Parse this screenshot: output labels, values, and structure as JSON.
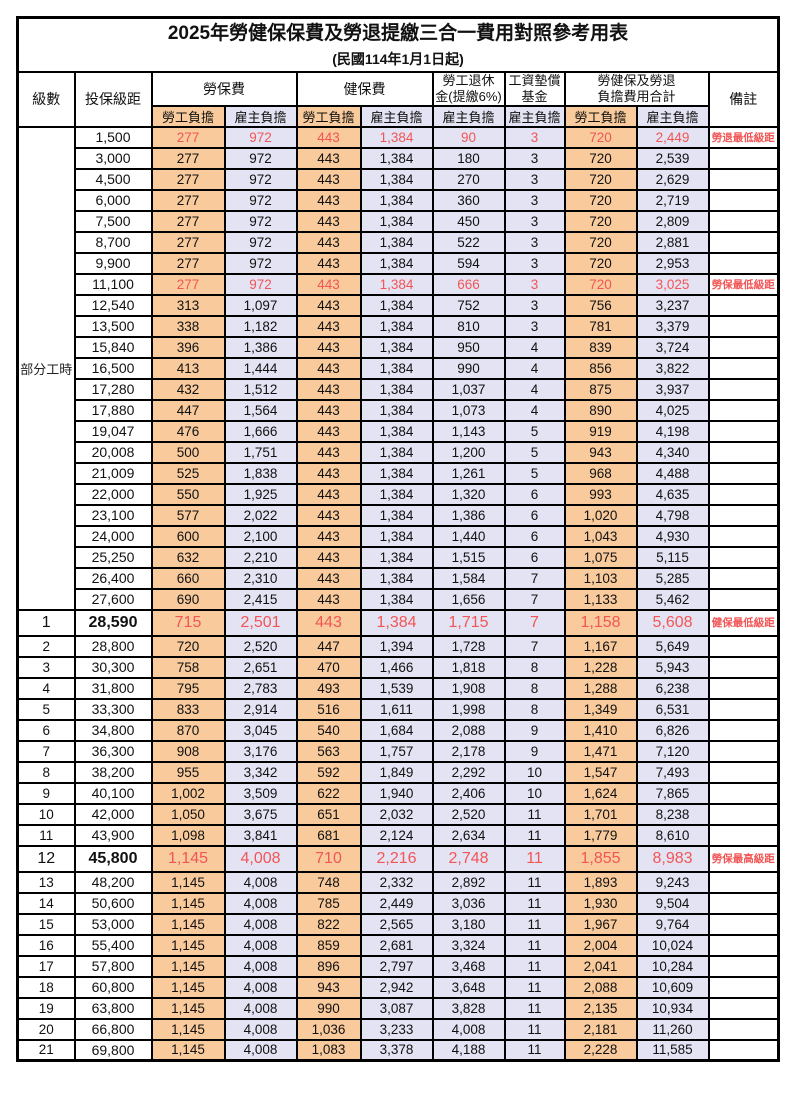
{
  "title": "2025年勞健保保費及勞退提繳三合一費用對照參考用表",
  "subtitle": "(民國114年1月1日起)",
  "colors": {
    "worker_bg": "#F8CA9C",
    "employer_bg": "#E4E3F3",
    "highlight_red": "#F25555",
    "border": "#000000"
  },
  "table": {
    "header": {
      "level": "級數",
      "bracket": "投保級距",
      "labor_ins": "勞保費",
      "health_ins": "健保費",
      "pension_line1": "勞工退休",
      "pension_line2": "金(提繳6%)",
      "fund_line1": "工資墊償",
      "fund_line2": "基金",
      "total_line1": "勞健保及勞退",
      "total_line2": "負擔費用合計",
      "remark": "備註",
      "worker": "勞工負擔",
      "employer": "雇主負擔"
    },
    "part_time_label": "部分工時",
    "part_time_rowspan": 23,
    "rows": [
      {
        "level": "",
        "bracket": "1,500",
        "cells": [
          "277",
          "972",
          "443",
          "1,384",
          "90",
          "3",
          "720",
          "2,449"
        ],
        "remark": "勞退最低級距",
        "red": true
      },
      {
        "level": "",
        "bracket": "3,000",
        "cells": [
          "277",
          "972",
          "443",
          "1,384",
          "180",
          "3",
          "720",
          "2,539"
        ],
        "remark": ""
      },
      {
        "level": "",
        "bracket": "4,500",
        "cells": [
          "277",
          "972",
          "443",
          "1,384",
          "270",
          "3",
          "720",
          "2,629"
        ],
        "remark": ""
      },
      {
        "level": "",
        "bracket": "6,000",
        "cells": [
          "277",
          "972",
          "443",
          "1,384",
          "360",
          "3",
          "720",
          "2,719"
        ],
        "remark": ""
      },
      {
        "level": "",
        "bracket": "7,500",
        "cells": [
          "277",
          "972",
          "443",
          "1,384",
          "450",
          "3",
          "720",
          "2,809"
        ],
        "remark": ""
      },
      {
        "level": "",
        "bracket": "8,700",
        "cells": [
          "277",
          "972",
          "443",
          "1,384",
          "522",
          "3",
          "720",
          "2,881"
        ],
        "remark": ""
      },
      {
        "level": "",
        "bracket": "9,900",
        "cells": [
          "277",
          "972",
          "443",
          "1,384",
          "594",
          "3",
          "720",
          "2,953"
        ],
        "remark": ""
      },
      {
        "level": "",
        "bracket": "11,100",
        "cells": [
          "277",
          "972",
          "443",
          "1,384",
          "666",
          "3",
          "720",
          "3,025"
        ],
        "remark": "勞保最低級距",
        "red": true
      },
      {
        "level": "",
        "bracket": "12,540",
        "cells": [
          "313",
          "1,097",
          "443",
          "1,384",
          "752",
          "3",
          "756",
          "3,237"
        ],
        "remark": ""
      },
      {
        "level": "",
        "bracket": "13,500",
        "cells": [
          "338",
          "1,182",
          "443",
          "1,384",
          "810",
          "3",
          "781",
          "3,379"
        ],
        "remark": ""
      },
      {
        "level": "",
        "bracket": "15,840",
        "cells": [
          "396",
          "1,386",
          "443",
          "1,384",
          "950",
          "4",
          "839",
          "3,724"
        ],
        "remark": ""
      },
      {
        "level": "",
        "bracket": "16,500",
        "cells": [
          "413",
          "1,444",
          "443",
          "1,384",
          "990",
          "4",
          "856",
          "3,822"
        ],
        "remark": ""
      },
      {
        "level": "",
        "bracket": "17,280",
        "cells": [
          "432",
          "1,512",
          "443",
          "1,384",
          "1,037",
          "4",
          "875",
          "3,937"
        ],
        "remark": ""
      },
      {
        "level": "",
        "bracket": "17,880",
        "cells": [
          "447",
          "1,564",
          "443",
          "1,384",
          "1,073",
          "4",
          "890",
          "4,025"
        ],
        "remark": ""
      },
      {
        "level": "",
        "bracket": "19,047",
        "cells": [
          "476",
          "1,666",
          "443",
          "1,384",
          "1,143",
          "5",
          "919",
          "4,198"
        ],
        "remark": ""
      },
      {
        "level": "",
        "bracket": "20,008",
        "cells": [
          "500",
          "1,751",
          "443",
          "1,384",
          "1,200",
          "5",
          "943",
          "4,340"
        ],
        "remark": ""
      },
      {
        "level": "",
        "bracket": "21,009",
        "cells": [
          "525",
          "1,838",
          "443",
          "1,384",
          "1,261",
          "5",
          "968",
          "4,488"
        ],
        "remark": ""
      },
      {
        "level": "",
        "bracket": "22,000",
        "cells": [
          "550",
          "1,925",
          "443",
          "1,384",
          "1,320",
          "6",
          "993",
          "4,635"
        ],
        "remark": ""
      },
      {
        "level": "",
        "bracket": "23,100",
        "cells": [
          "577",
          "2,022",
          "443",
          "1,384",
          "1,386",
          "6",
          "1,020",
          "4,798"
        ],
        "remark": ""
      },
      {
        "level": "",
        "bracket": "24,000",
        "cells": [
          "600",
          "2,100",
          "443",
          "1,384",
          "1,440",
          "6",
          "1,043",
          "4,930"
        ],
        "remark": ""
      },
      {
        "level": "",
        "bracket": "25,250",
        "cells": [
          "632",
          "2,210",
          "443",
          "1,384",
          "1,515",
          "6",
          "1,075",
          "5,115"
        ],
        "remark": ""
      },
      {
        "level": "",
        "bracket": "26,400",
        "cells": [
          "660",
          "2,310",
          "443",
          "1,384",
          "1,584",
          "7",
          "1,103",
          "5,285"
        ],
        "remark": ""
      },
      {
        "level": "",
        "bracket": "27,600",
        "cells": [
          "690",
          "2,415",
          "443",
          "1,384",
          "1,656",
          "7",
          "1,133",
          "5,462"
        ],
        "remark": ""
      },
      {
        "level": "1",
        "bracket": "28,590",
        "cells": [
          "715",
          "2,501",
          "443",
          "1,384",
          "1,715",
          "7",
          "1,158",
          "5,608"
        ],
        "remark": "健保最低級距",
        "red": true,
        "big": true
      },
      {
        "level": "2",
        "bracket": "28,800",
        "cells": [
          "720",
          "2,520",
          "447",
          "1,394",
          "1,728",
          "7",
          "1,167",
          "5,649"
        ],
        "remark": ""
      },
      {
        "level": "3",
        "bracket": "30,300",
        "cells": [
          "758",
          "2,651",
          "470",
          "1,466",
          "1,818",
          "8",
          "1,228",
          "5,943"
        ],
        "remark": ""
      },
      {
        "level": "4",
        "bracket": "31,800",
        "cells": [
          "795",
          "2,783",
          "493",
          "1,539",
          "1,908",
          "8",
          "1,288",
          "6,238"
        ],
        "remark": ""
      },
      {
        "level": "5",
        "bracket": "33,300",
        "cells": [
          "833",
          "2,914",
          "516",
          "1,611",
          "1,998",
          "8",
          "1,349",
          "6,531"
        ],
        "remark": ""
      },
      {
        "level": "6",
        "bracket": "34,800",
        "cells": [
          "870",
          "3,045",
          "540",
          "1,684",
          "2,088",
          "9",
          "1,410",
          "6,826"
        ],
        "remark": ""
      },
      {
        "level": "7",
        "bracket": "36,300",
        "cells": [
          "908",
          "3,176",
          "563",
          "1,757",
          "2,178",
          "9",
          "1,471",
          "7,120"
        ],
        "remark": ""
      },
      {
        "level": "8",
        "bracket": "38,200",
        "cells": [
          "955",
          "3,342",
          "592",
          "1,849",
          "2,292",
          "10",
          "1,547",
          "7,493"
        ],
        "remark": ""
      },
      {
        "level": "9",
        "bracket": "40,100",
        "cells": [
          "1,002",
          "3,509",
          "622",
          "1,940",
          "2,406",
          "10",
          "1,624",
          "7,865"
        ],
        "remark": ""
      },
      {
        "level": "10",
        "bracket": "42,000",
        "cells": [
          "1,050",
          "3,675",
          "651",
          "2,032",
          "2,520",
          "11",
          "1,701",
          "8,238"
        ],
        "remark": ""
      },
      {
        "level": "11",
        "bracket": "43,900",
        "cells": [
          "1,098",
          "3,841",
          "681",
          "2,124",
          "2,634",
          "11",
          "1,779",
          "8,610"
        ],
        "remark": ""
      },
      {
        "level": "12",
        "bracket": "45,800",
        "cells": [
          "1,145",
          "4,008",
          "710",
          "2,216",
          "2,748",
          "11",
          "1,855",
          "8,983"
        ],
        "remark": "勞保最高級距",
        "red": true,
        "big": true
      },
      {
        "level": "13",
        "bracket": "48,200",
        "cells": [
          "1,145",
          "4,008",
          "748",
          "2,332",
          "2,892",
          "11",
          "1,893",
          "9,243"
        ],
        "remark": ""
      },
      {
        "level": "14",
        "bracket": "50,600",
        "cells": [
          "1,145",
          "4,008",
          "785",
          "2,449",
          "3,036",
          "11",
          "1,930",
          "9,504"
        ],
        "remark": ""
      },
      {
        "level": "15",
        "bracket": "53,000",
        "cells": [
          "1,145",
          "4,008",
          "822",
          "2,565",
          "3,180",
          "11",
          "1,967",
          "9,764"
        ],
        "remark": ""
      },
      {
        "level": "16",
        "bracket": "55,400",
        "cells": [
          "1,145",
          "4,008",
          "859",
          "2,681",
          "3,324",
          "11",
          "2,004",
          "10,024"
        ],
        "remark": ""
      },
      {
        "level": "17",
        "bracket": "57,800",
        "cells": [
          "1,145",
          "4,008",
          "896",
          "2,797",
          "3,468",
          "11",
          "2,041",
          "10,284"
        ],
        "remark": ""
      },
      {
        "level": "18",
        "bracket": "60,800",
        "cells": [
          "1,145",
          "4,008",
          "943",
          "2,942",
          "3,648",
          "11",
          "2,088",
          "10,609"
        ],
        "remark": ""
      },
      {
        "level": "19",
        "bracket": "63,800",
        "cells": [
          "1,145",
          "4,008",
          "990",
          "3,087",
          "3,828",
          "11",
          "2,135",
          "10,934"
        ],
        "remark": ""
      },
      {
        "level": "20",
        "bracket": "66,800",
        "cells": [
          "1,145",
          "4,008",
          "1,036",
          "3,233",
          "4,008",
          "11",
          "2,181",
          "11,260"
        ],
        "remark": ""
      },
      {
        "level": "21",
        "bracket": "69,800",
        "cells": [
          "1,145",
          "4,008",
          "1,083",
          "3,378",
          "4,188",
          "11",
          "2,228",
          "11,585"
        ],
        "remark": ""
      }
    ]
  }
}
